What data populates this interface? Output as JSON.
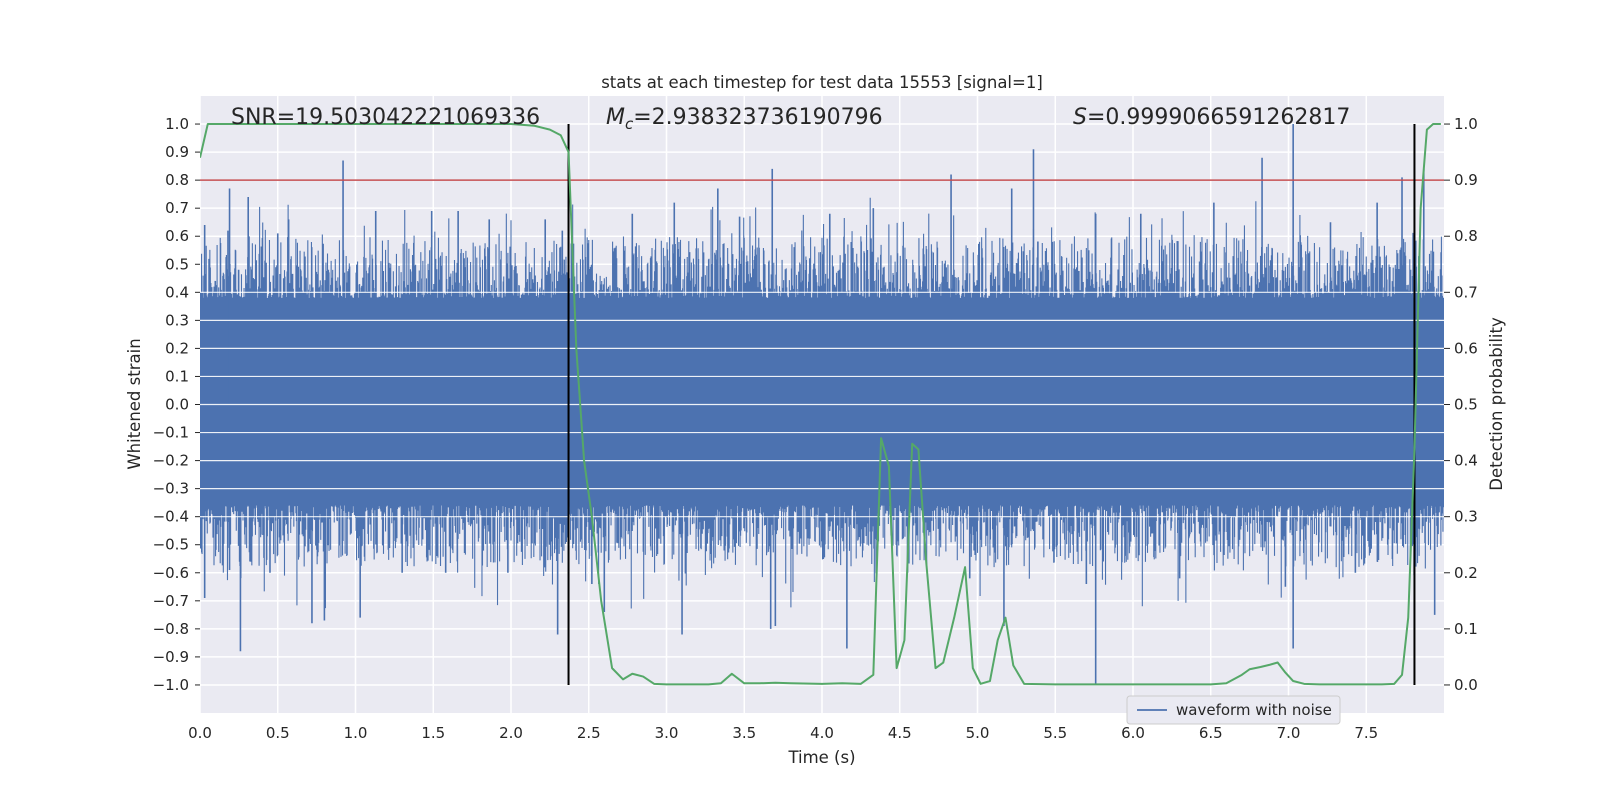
{
  "chart_data": {
    "type": "line",
    "title": "stats at each timestep for test data 15553 [signal=1]",
    "xlabel": "Time (s)",
    "ylabel": "Whitened strain",
    "y2label": "Detection probability",
    "xlim": [
      0.0,
      8.0
    ],
    "ylim": [
      -1.1,
      1.1
    ],
    "y2lim": [
      -0.05,
      1.05
    ],
    "x_ticks": [
      0.0,
      0.5,
      1.0,
      1.5,
      2.0,
      2.5,
      3.0,
      3.5,
      4.0,
      4.5,
      5.0,
      5.5,
      6.0,
      6.5,
      7.0,
      7.5
    ],
    "y_ticks": [
      -1.0,
      -0.9,
      -0.8,
      -0.7,
      -0.6,
      -0.5,
      -0.4,
      -0.3,
      -0.2,
      -0.1,
      0.0,
      0.1,
      0.2,
      0.3,
      0.4,
      0.5,
      0.6,
      0.7,
      0.8,
      0.9,
      1.0
    ],
    "y2_ticks": [
      0.0,
      0.1,
      0.2,
      0.3,
      0.4,
      0.5,
      0.6,
      0.7,
      0.8,
      0.9,
      1.0
    ],
    "grid": true,
    "legend_position": "lower-right",
    "annotations": {
      "snr": "SNR=19.503042221069336",
      "mc_symbol": "M",
      "mc_subscript": "c",
      "mc_value": "=2.938323736190796",
      "s_symbol": "S",
      "s_value": "=0.9999066591262817"
    },
    "threshold_line": {
      "y": 0.8,
      "color": "#c44e52"
    },
    "vertical_lines": [
      2.37,
      7.81
    ],
    "series": [
      {
        "name": "waveform with noise",
        "axis": "left",
        "color": "#4c72b0",
        "description_note": "dense noise signal, envelope approx ±0.45 with spikes",
        "spikes": [
          {
            "x": 0.03,
            "y": 0.64
          },
          {
            "x": 0.03,
            "y": -0.69
          },
          {
            "x": 0.18,
            "y": 0.62
          },
          {
            "x": 0.19,
            "y": -0.59
          },
          {
            "x": 0.19,
            "y": 0.77
          },
          {
            "x": 0.26,
            "y": -0.88
          },
          {
            "x": 0.31,
            "y": 0.74
          },
          {
            "x": 0.45,
            "y": -0.6
          },
          {
            "x": 0.5,
            "y": 0.61
          },
          {
            "x": 0.57,
            "y": 0.66
          },
          {
            "x": 0.72,
            "y": -0.78
          },
          {
            "x": 0.8,
            "y": -0.77
          },
          {
            "x": 0.92,
            "y": 0.87
          },
          {
            "x": 1.03,
            "y": -0.76
          },
          {
            "x": 1.13,
            "y": 0.69
          },
          {
            "x": 1.3,
            "y": -0.6
          },
          {
            "x": 1.49,
            "y": 0.69
          },
          {
            "x": 1.58,
            "y": -0.6
          },
          {
            "x": 1.66,
            "y": 0.69
          },
          {
            "x": 1.86,
            "y": 0.66
          },
          {
            "x": 1.98,
            "y": -0.6
          },
          {
            "x": 2.22,
            "y": 0.66
          },
          {
            "x": 2.3,
            "y": -0.82
          },
          {
            "x": 2.33,
            "y": 0.62
          },
          {
            "x": 2.52,
            "y": -0.64
          },
          {
            "x": 2.6,
            "y": -0.74
          },
          {
            "x": 2.78,
            "y": 0.68
          },
          {
            "x": 3.05,
            "y": 0.72
          },
          {
            "x": 3.1,
            "y": -0.82
          },
          {
            "x": 3.33,
            "y": 0.77
          },
          {
            "x": 3.47,
            "y": 0.67
          },
          {
            "x": 3.68,
            "y": 0.84
          },
          {
            "x": 3.67,
            "y": -0.8
          },
          {
            "x": 3.7,
            "y": -0.79
          },
          {
            "x": 4.05,
            "y": 0.68
          },
          {
            "x": 4.16,
            "y": -0.87
          },
          {
            "x": 4.33,
            "y": 0.7
          },
          {
            "x": 4.55,
            "y": -0.6
          },
          {
            "x": 4.83,
            "y": 0.82
          },
          {
            "x": 4.95,
            "y": -0.62
          },
          {
            "x": 5.17,
            "y": -0.79
          },
          {
            "x": 5.22,
            "y": 0.77
          },
          {
            "x": 5.36,
            "y": 0.91
          },
          {
            "x": 5.7,
            "y": -0.64
          },
          {
            "x": 5.76,
            "y": -1.0
          },
          {
            "x": 5.76,
            "y": 0.68
          },
          {
            "x": 6.05,
            "y": 0.68
          },
          {
            "x": 6.3,
            "y": -0.62
          },
          {
            "x": 6.52,
            "y": 0.72
          },
          {
            "x": 6.83,
            "y": 0.88
          },
          {
            "x": 6.98,
            "y": -0.65
          },
          {
            "x": 7.03,
            "y": 1.0
          },
          {
            "x": 7.03,
            "y": -0.87
          },
          {
            "x": 7.27,
            "y": 0.65
          },
          {
            "x": 7.43,
            "y": -0.6
          },
          {
            "x": 7.57,
            "y": 0.72
          },
          {
            "x": 7.73,
            "y": 0.81
          },
          {
            "x": 7.87,
            "y": 0.84
          },
          {
            "x": 7.94,
            "y": -0.75
          }
        ]
      },
      {
        "name": "",
        "axis": "right",
        "color": "#55a868",
        "x": [
          0.0,
          0.05,
          0.15,
          0.25,
          0.5,
          1.0,
          1.5,
          2.0,
          2.15,
          2.25,
          2.32,
          2.37,
          2.42,
          2.47,
          2.52,
          2.58,
          2.65,
          2.72,
          2.78,
          2.85,
          2.92,
          3.0,
          3.1,
          3.2,
          3.27,
          3.35,
          3.42,
          3.5,
          3.6,
          3.7,
          3.8,
          4.0,
          4.13,
          4.25,
          4.33,
          4.38,
          4.43,
          4.48,
          4.53,
          4.58,
          4.62,
          4.67,
          4.73,
          4.78,
          4.85,
          4.92,
          4.97,
          5.02,
          5.08,
          5.13,
          5.18,
          5.23,
          5.3,
          5.5,
          6.0,
          6.5,
          6.6,
          6.7,
          6.75,
          6.82,
          6.88,
          6.93,
          6.98,
          7.03,
          7.1,
          7.2,
          7.4,
          7.6,
          7.68,
          7.73,
          7.77,
          7.81,
          7.85,
          7.89,
          7.93,
          7.98
        ],
        "y": [
          0.94,
          1.0,
          1.0,
          1.0,
          1.0,
          1.0,
          1.0,
          1.0,
          0.997,
          0.99,
          0.98,
          0.95,
          0.6,
          0.4,
          0.3,
          0.15,
          0.03,
          0.01,
          0.02,
          0.015,
          0.002,
          0.001,
          0.001,
          0.001,
          0.001,
          0.003,
          0.02,
          0.003,
          0.003,
          0.004,
          0.003,
          0.002,
          0.003,
          0.002,
          0.018,
          0.44,
          0.39,
          0.03,
          0.08,
          0.43,
          0.42,
          0.22,
          0.03,
          0.04,
          0.12,
          0.21,
          0.03,
          0.002,
          0.007,
          0.08,
          0.12,
          0.035,
          0.002,
          0.001,
          0.001,
          0.001,
          0.003,
          0.018,
          0.028,
          0.032,
          0.036,
          0.04,
          0.022,
          0.007,
          0.002,
          0.001,
          0.001,
          0.001,
          0.002,
          0.018,
          0.12,
          0.42,
          0.85,
          0.99,
          1.0,
          1.0
        ]
      }
    ]
  }
}
